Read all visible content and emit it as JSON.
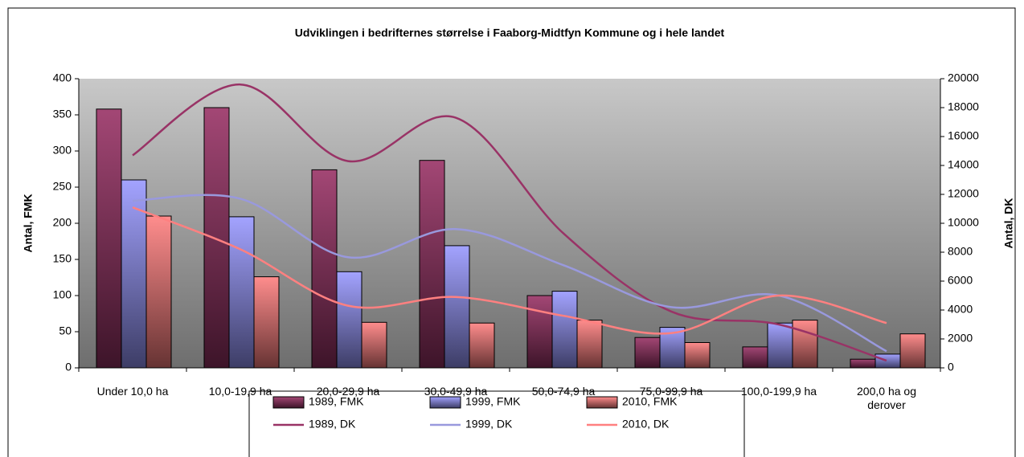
{
  "chart_data": {
    "type": "bar",
    "title": "Udviklingen i bedrifternes størrelse i Faaborg-Midtfyn Kommune og i hele landet",
    "y_label": "Antal, FMK",
    "y2_label": "Antal, DK",
    "categories": [
      "Under 10,0 ha",
      "10,0-19,9 ha",
      "20,0-29,9 ha",
      "30,0-49,9 ha",
      "50,0-74,9 ha",
      "75,0-99,9 ha",
      "100,0-199,9 ha",
      "200,0 ha og derover"
    ],
    "ylim": [
      0,
      400
    ],
    "yticks": [
      0,
      50,
      100,
      150,
      200,
      250,
      300,
      350,
      400
    ],
    "y2lim": [
      0,
      20000
    ],
    "y2ticks": [
      0,
      2000,
      4000,
      6000,
      8000,
      10000,
      12000,
      14000,
      16000,
      18000,
      20000
    ],
    "series": [
      {
        "name": "1989, FMK",
        "color": "#993366",
        "type": "bar",
        "values": [
          358,
          360,
          274,
          287,
          100,
          42,
          29,
          12
        ]
      },
      {
        "name": "1999, FMK",
        "color": "#9999ff",
        "type": "bar",
        "values": [
          260,
          209,
          133,
          169,
          106,
          56,
          62,
          19
        ]
      },
      {
        "name": "2010, FMK",
        "color": "#ff8080",
        "type": "bar",
        "values": [
          210,
          126,
          63,
          62,
          66,
          35,
          66,
          47
        ]
      },
      {
        "name": "1989, DK",
        "color": "#993366",
        "type": "line",
        "axis": "y2",
        "values": [
          14700,
          19600,
          14300,
          17300,
          9300,
          3900,
          3000,
          500
        ]
      },
      {
        "name": "1999, DK",
        "color": "#9999dd",
        "type": "line",
        "axis": "y2",
        "values": [
          11550,
          11700,
          7650,
          9600,
          7100,
          4200,
          5000,
          1150
        ]
      },
      {
        "name": "2010, DK",
        "color": "#ff8080",
        "type": "line",
        "axis": "y2",
        "values": [
          11100,
          8200,
          4300,
          4900,
          3600,
          2400,
          5000,
          3100
        ]
      }
    ]
  }
}
